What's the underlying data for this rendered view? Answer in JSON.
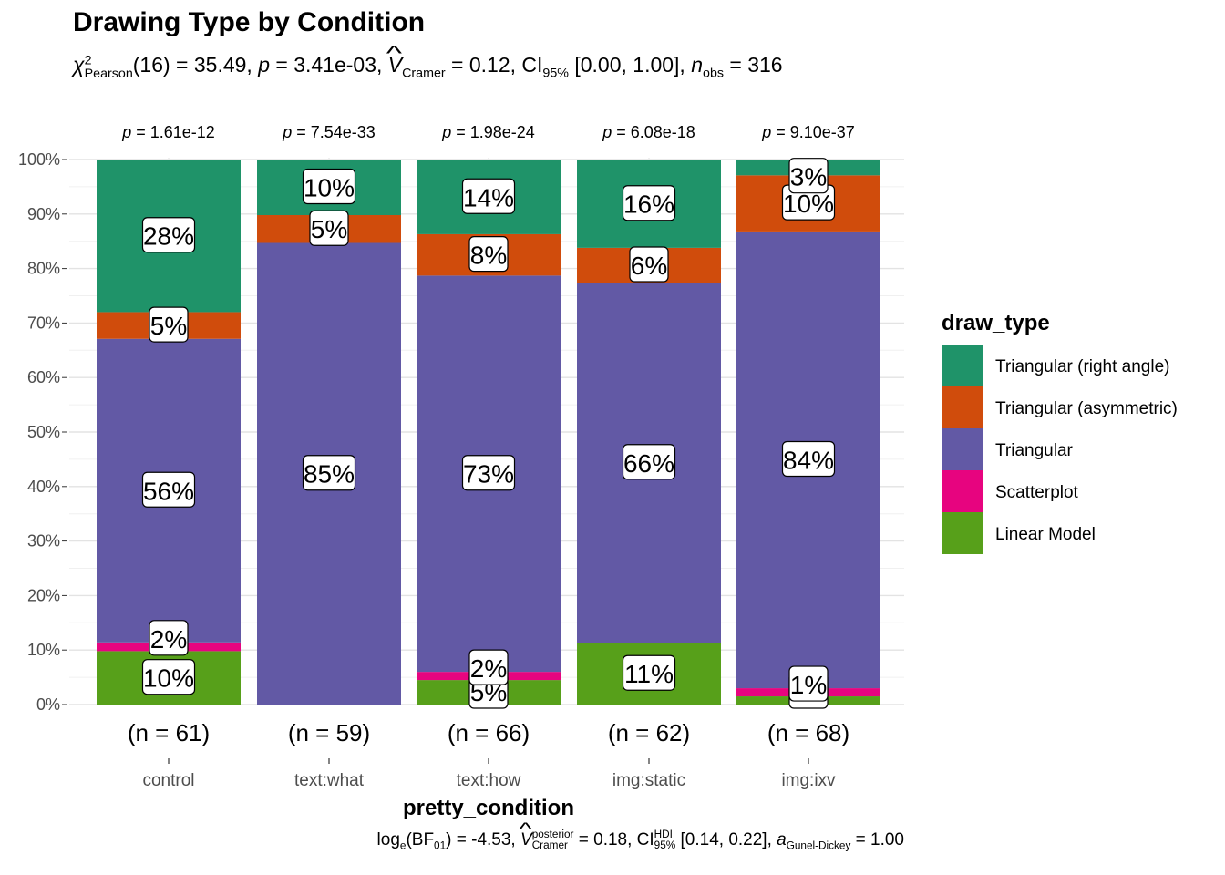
{
  "title": "Drawing Type by Condition",
  "subtitle": {
    "chi": "χ",
    "chi_sup": "2",
    "chi_sub": "Pearson",
    "stat": "(16) = 35.49, ",
    "p_sym": "p",
    "p_val": " = 3.41e-03, ",
    "v_sym": "V",
    "v_sub": "Cramer",
    "v_val": " = 0.12, CI",
    "ci_sub": "95%",
    "ci_val": " [0.00, 1.00], ",
    "n_sym": "n",
    "n_sub": "obs",
    "n_val": " = 316"
  },
  "caption": {
    "log": "log",
    "log_sub": "e",
    "bf": "(BF",
    "bf_sub": "01",
    "bf_val": ") = -4.53, ",
    "v_sym": "V",
    "v_sup": "posterior",
    "v_sub": "Cramer",
    "v_val": " = 0.18, CI",
    "ci_sup": "HDI",
    "ci_sub": "95%",
    "ci_val": " [0.14, 0.22], ",
    "a_sym": "a",
    "a_sub": "Gunel-Dickey",
    "a_val": " = 1.00"
  },
  "chart_data": {
    "type": "bar",
    "stacked": true,
    "percent": true,
    "xlabel": "pretty_condition",
    "ylabel": "",
    "ylim": [
      0,
      100
    ],
    "yticks": [
      "0%",
      "10%",
      "20%",
      "30%",
      "40%",
      "50%",
      "60%",
      "70%",
      "80%",
      "90%",
      "100%"
    ],
    "categories": [
      "control",
      "text:what",
      "text:how",
      "img:static",
      "img:ixv"
    ],
    "counts": [
      "(n = 61)",
      "(n = 59)",
      "(n = 66)",
      "(n = 62)",
      "(n = 68)"
    ],
    "pvalues": [
      "p = 1.61e-12",
      "p = 7.54e-33",
      "p = 1.98e-24",
      "p = 6.08e-18",
      "p = 9.10e-37"
    ],
    "grid": true,
    "legend": {
      "title": "draw_type",
      "position": "right"
    },
    "series": [
      {
        "name": "Linear Model",
        "color": "#57A01A",
        "values": [
          9.8,
          0,
          4.5,
          11.3,
          1.5
        ],
        "labels": [
          "10%",
          "",
          "5%",
          "11%",
          "1%"
        ]
      },
      {
        "name": "Scatterplot",
        "color": "#E7047F",
        "values": [
          1.6,
          0,
          1.5,
          0,
          1.5
        ],
        "labels": [
          "2%",
          "",
          "2%",
          "",
          "1%"
        ]
      },
      {
        "name": "Triangular",
        "color": "#6259A5",
        "values": [
          55.7,
          84.7,
          72.7,
          66.1,
          83.8
        ],
        "labels": [
          "56%",
          "85%",
          "73%",
          "66%",
          "84%"
        ]
      },
      {
        "name": "Triangular (asymmetric)",
        "color": "#D04C0C",
        "values": [
          4.9,
          5.1,
          7.6,
          6.4,
          10.3
        ],
        "labels": [
          "5%",
          "5%",
          "8%",
          "6%",
          "10%"
        ]
      },
      {
        "name": "Triangular (right angle)",
        "color": "#1F9369",
        "values": [
          28.0,
          10.2,
          13.6,
          16.1,
          2.9
        ],
        "labels": [
          "28%",
          "10%",
          "14%",
          "16%",
          "3%"
        ]
      }
    ],
    "legend_order": [
      "Triangular (right angle)",
      "Triangular (asymmetric)",
      "Triangular",
      "Scatterplot",
      "Linear Model"
    ]
  }
}
